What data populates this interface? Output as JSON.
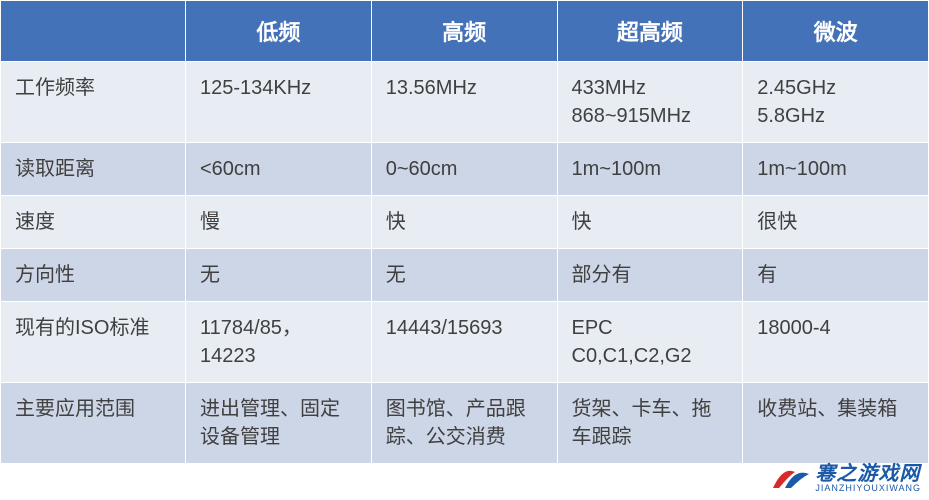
{
  "table": {
    "header_bg": "#4472b8",
    "header_color": "#ffffff",
    "row_light_bg": "#e8edf4",
    "row_dark_bg": "#cdd6e6",
    "text_color": "#404040",
    "headers": [
      "",
      "低频",
      "高频",
      "超高频",
      "微波"
    ],
    "rows": [
      {
        "label": "工作频率",
        "cells": [
          "125-134KHz",
          "13.56MHz",
          "433MHz\n868~915MHz",
          "2.45GHz\n5.8GHz"
        ]
      },
      {
        "label": "读取距离",
        "cells": [
          "<60cm",
          "0~60cm",
          "1m~100m",
          "1m~100m"
        ]
      },
      {
        "label": "速度",
        "cells": [
          "慢",
          "快",
          "快",
          "很快"
        ]
      },
      {
        "label": "方向性",
        "cells": [
          "无",
          "无",
          "部分有",
          "有"
        ]
      },
      {
        "label": "现有的ISO标准",
        "cells": [
          "11784/85，14223",
          "14443/15693",
          "EPC C0,C1,C2,G2",
          "18000-4"
        ]
      },
      {
        "label": "主要应用范围",
        "cells": [
          "进出管理、固定设备管理",
          "图书馆、产品跟踪、公交消费",
          "货架、卡车、拖车跟踪",
          "收费站、集装箱"
        ]
      }
    ]
  },
  "watermark": {
    "cn": "寋之游戏网",
    "py": "JIANZHIYOUXIWANG",
    "logo_red": "#d82a2a",
    "logo_blue": "#1b5aa8"
  }
}
